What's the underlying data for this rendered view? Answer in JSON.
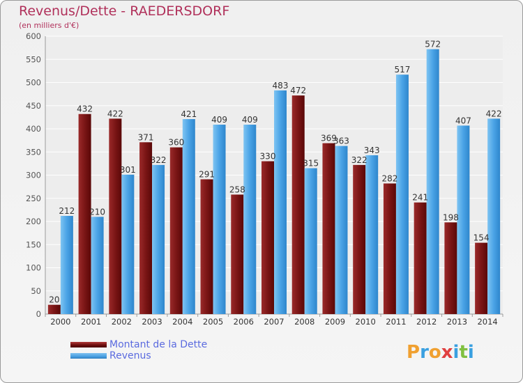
{
  "title": "Revenus/Dette - RAEDERSDORF",
  "subtitle": "(en milliers d'€)",
  "legend": {
    "dette_label": "Montant de la Dette",
    "revenus_label": "Revenus"
  },
  "logo": {
    "letters": [
      "P",
      "r",
      "o",
      "x",
      "i",
      "t",
      "i"
    ],
    "colors": [
      "#f0a030",
      "#3aa0e0",
      "#f0a030",
      "#e04040",
      "#3aa0e0",
      "#80c040",
      "#3aa0e0"
    ]
  },
  "colors": {
    "dette": "#7a1515",
    "revenus": "#4aa3e6",
    "title": "#b0305a",
    "legend_text": "#5a6adf"
  },
  "chart_data": {
    "type": "bar",
    "categories": [
      "2000",
      "2001",
      "2002",
      "2003",
      "2004",
      "2005",
      "2006",
      "2007",
      "2008",
      "2009",
      "2010",
      "2011",
      "2012",
      "2013",
      "2014"
    ],
    "series": [
      {
        "name": "Montant de la Dette",
        "values": [
          20,
          432,
          422,
          371,
          360,
          291,
          258,
          330,
          472,
          369,
          322,
          282,
          241,
          198,
          154
        ]
      },
      {
        "name": "Revenus",
        "values": [
          212,
          210,
          301,
          322,
          421,
          409,
          409,
          483,
          315,
          363,
          343,
          517,
          572,
          407,
          422
        ]
      }
    ],
    "yticks": [
      0,
      50,
      100,
      150,
      200,
      250,
      300,
      350,
      400,
      450,
      500,
      550,
      600
    ],
    "ylim": [
      0,
      600
    ],
    "grid": true
  }
}
